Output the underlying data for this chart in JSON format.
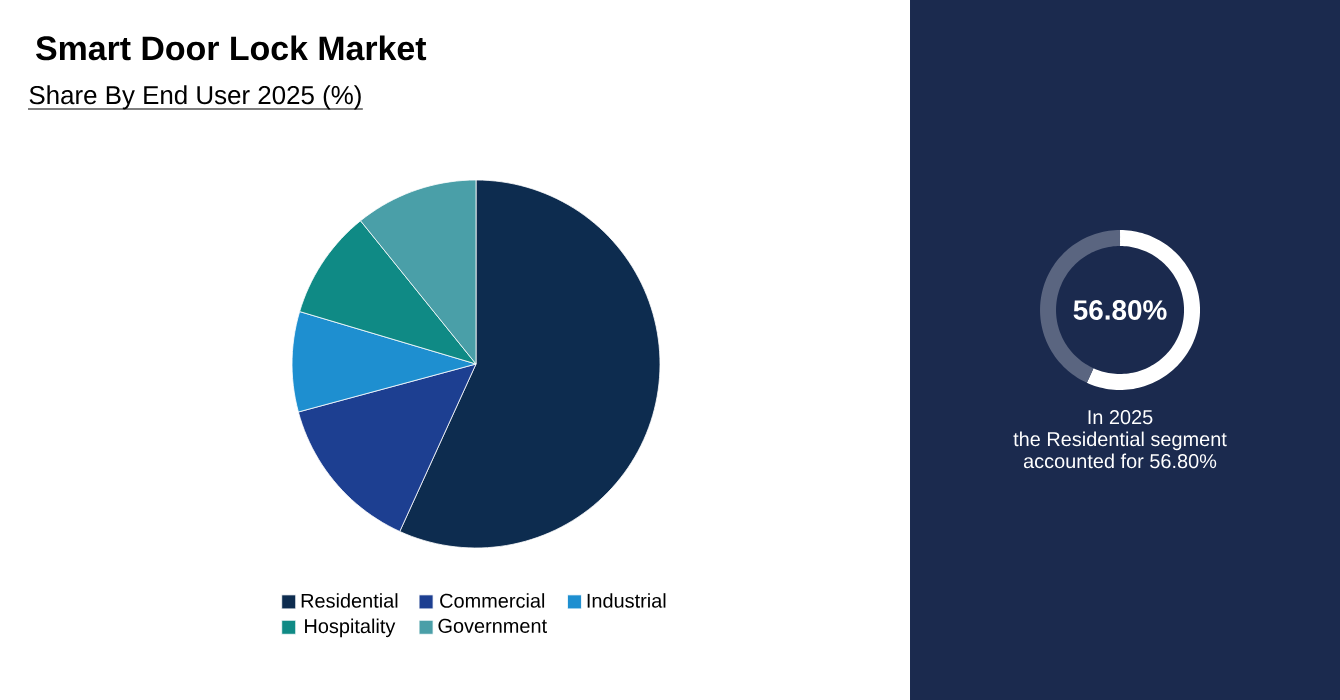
{
  "chart_data": [
    {
      "type": "pie",
      "title": "Smart Door Lock Market",
      "subtitle": "Share By End User 2025 (%)",
      "categories": [
        "Residential",
        "Commercial",
        "Industrial",
        "Hospitality",
        "Government"
      ],
      "values": [
        56.8,
        14,
        8.8,
        9.6,
        10.8
      ],
      "colors": [
        "#0d2c4f",
        "#1d3f91",
        "#1e8fd0",
        "#0f8a85",
        "#4a9fa8"
      ],
      "legend": "bottom"
    },
    {
      "type": "donut",
      "categories": [
        null,
        null
      ],
      "values": [
        56.8,
        43.2
      ],
      "colors": [
        "#ffffff",
        "#5a6580"
      ],
      "value_labels": [
        "56.80%",
        null
      ],
      "annotations": [
        "In 2025",
        "the Residential segment",
        "accounted for 56.80%"
      ]
    }
  ]
}
